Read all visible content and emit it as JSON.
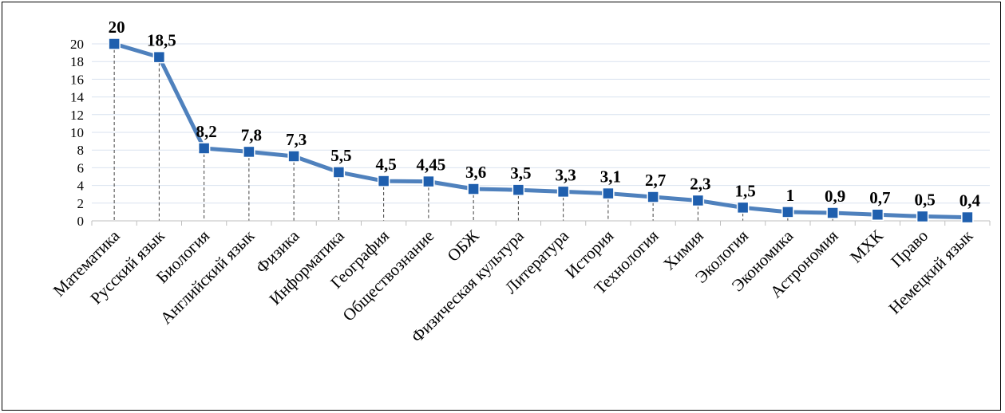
{
  "chart_data": {
    "type": "line",
    "categories": [
      "Математика",
      "Русский язык",
      "Биология",
      "Английский язык",
      "Физика",
      "Информатика",
      "География",
      "Обществознание",
      "ОБЖ",
      "Физическая культура",
      "Литература",
      "История",
      "Технология",
      "Химия",
      "Экология",
      "Экономика",
      "Астрономия",
      "МХК",
      "Право",
      "Немецкий язык"
    ],
    "values": [
      20,
      18.5,
      8.2,
      7.8,
      7.3,
      5.5,
      4.5,
      4.45,
      3.6,
      3.5,
      3.3,
      3.1,
      2.7,
      2.3,
      1.5,
      1,
      0.9,
      0.7,
      0.5,
      0.4
    ],
    "data_labels": [
      "20",
      "18,5",
      "8,2",
      "7,8",
      "7,3",
      "5,5",
      "4,5",
      "4,45",
      "3,6",
      "3,5",
      "3,3",
      "3,1",
      "2,7",
      "2,3",
      "1,5",
      "1",
      "0,9",
      "0,7",
      "0,5",
      "0,4"
    ],
    "yticks": [
      0,
      2,
      4,
      6,
      8,
      10,
      12,
      14,
      16,
      18,
      20
    ],
    "ylim": [
      0,
      20
    ],
    "grid": true,
    "drop_lines": true,
    "legend": "none",
    "colors": {
      "line": "#4f81bd",
      "marker": "#1f5fae",
      "marker_border": "#ffffff",
      "grid": "#d9e2ef",
      "drop_line": "#404040"
    }
  }
}
